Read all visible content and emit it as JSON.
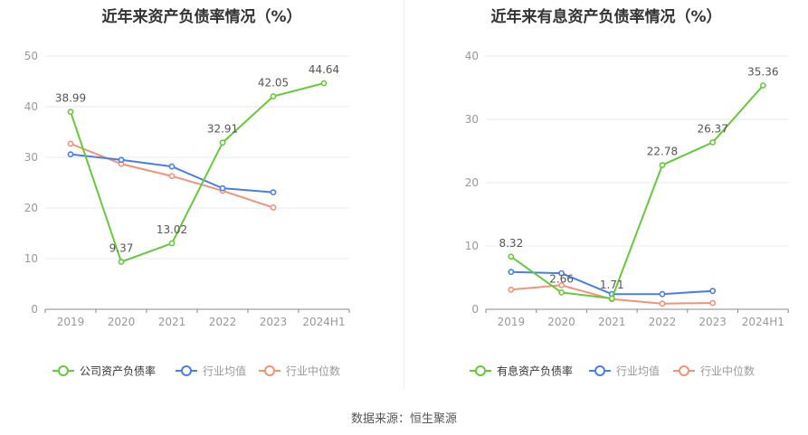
{
  "source": "数据来源：恒生聚源",
  "colors": {
    "main": "#66c93a",
    "avg": "#4a7ee6",
    "median": "#f29377",
    "grid": "#e6e9f2",
    "axis": "#999999",
    "label": "#555555"
  },
  "chart_data": [
    {
      "type": "line",
      "title": "近年来资产负债率情况（%）",
      "categories": [
        "2019",
        "2020",
        "2021",
        "2022",
        "2023",
        "2024H1"
      ],
      "ylim": [
        0,
        50
      ],
      "yticks": [
        "0",
        "10",
        "20",
        "30",
        "40",
        "50"
      ],
      "grid": true,
      "legend_position": "bottom",
      "series": [
        {
          "name": "公司资产负债率",
          "values": [
            38.99,
            9.37,
            13.02,
            32.91,
            42.05,
            44.64
          ],
          "labels": [
            "38.99",
            "9.37",
            "13.02",
            "32.91",
            "42.05",
            "44.64"
          ]
        },
        {
          "name": "行业均值",
          "values": [
            30.6,
            29.5,
            28.2,
            23.9,
            23.1,
            null
          ]
        },
        {
          "name": "行业中位数",
          "values": [
            32.7,
            28.7,
            26.3,
            23.4,
            20.1,
            null
          ]
        }
      ]
    },
    {
      "type": "line",
      "title": "近年来有息资产负债率情况（%）",
      "categories": [
        "2019",
        "2020",
        "2021",
        "2022",
        "2023",
        "2024H1"
      ],
      "ylim": [
        0,
        40
      ],
      "yticks": [
        "0",
        "10",
        "20",
        "30",
        "40"
      ],
      "grid": true,
      "legend_position": "bottom",
      "series": [
        {
          "name": "有息资产负债率",
          "values": [
            8.32,
            2.66,
            1.71,
            22.78,
            26.37,
            35.36
          ],
          "labels": [
            "8.32",
            "2.66",
            "1.71",
            "22.78",
            "26.37",
            "35.36"
          ]
        },
        {
          "name": "行业均值",
          "values": [
            5.9,
            5.7,
            2.4,
            2.4,
            2.9,
            null
          ]
        },
        {
          "name": "行业中位数",
          "values": [
            3.1,
            3.8,
            1.6,
            0.9,
            1.0,
            null
          ]
        }
      ]
    }
  ]
}
